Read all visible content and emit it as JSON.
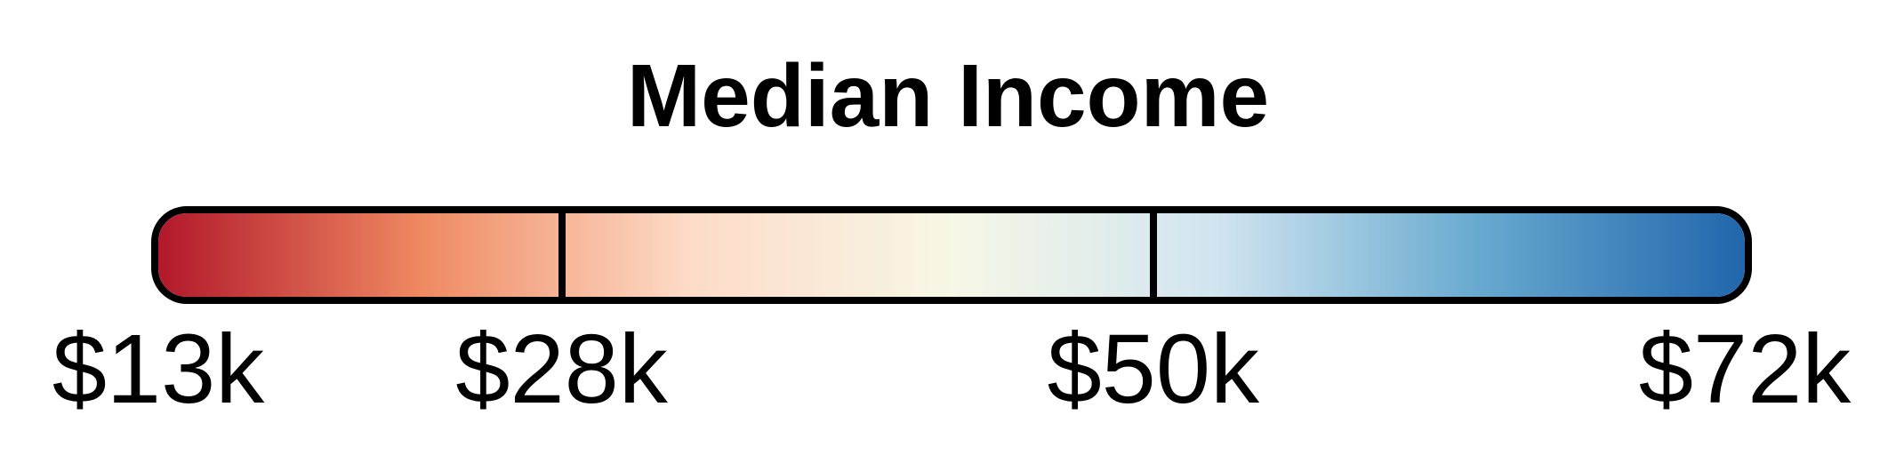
{
  "legend": {
    "title": "Median Income",
    "scale": {
      "min": 13,
      "max": 72,
      "unit": "k",
      "colors": [
        "#b2182b",
        "#ef8a62",
        "#fddbc7",
        "#f7f7e6",
        "#d1e5f0",
        "#67a9cf",
        "#2166ac"
      ]
    },
    "breaks": [
      {
        "value": 13,
        "label": "$13k"
      },
      {
        "value": 28,
        "label": "$28k"
      },
      {
        "value": 50,
        "label": "$50k"
      },
      {
        "value": 72,
        "label": "$72k"
      }
    ],
    "border_color": "#000000"
  }
}
